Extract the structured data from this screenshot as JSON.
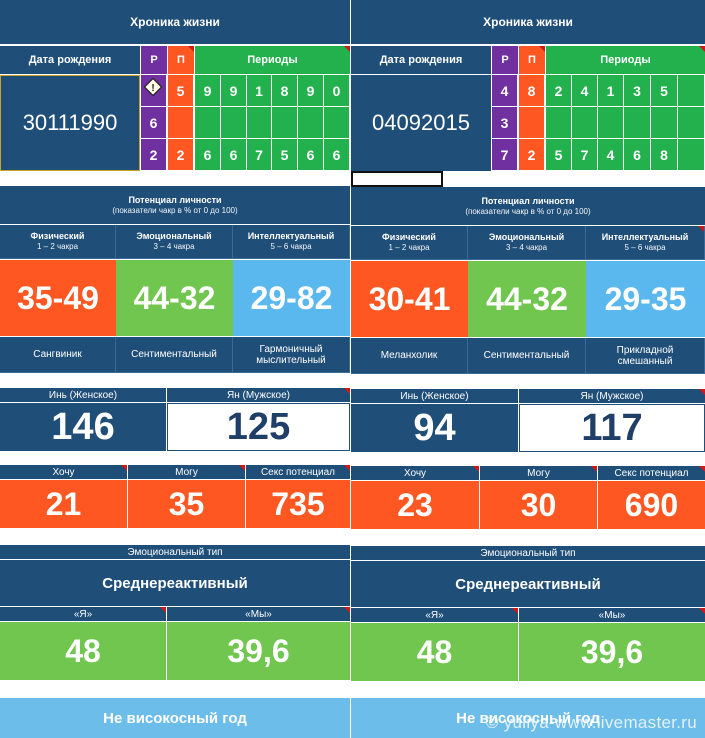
{
  "panels": [
    {
      "title": "Хроника жизни",
      "birth_label": "Дата рождения",
      "birth_date": "30111990",
      "p_label": "Р",
      "p2_label": "П",
      "periods_label": "Периоды",
      "p_col": [
        "",
        "6",
        "2"
      ],
      "p2_col": [
        "5",
        "",
        "2"
      ],
      "periods": [
        [
          "9",
          "9",
          "1",
          "8",
          "9",
          "0"
        ],
        [
          "",
          "",
          "",
          "",
          "",
          ""
        ],
        [
          "6",
          "6",
          "7",
          "5",
          "6",
          "6"
        ]
      ],
      "potential_title": "Потенциал личности",
      "potential_sub": "(показатели чакр в % от 0 до 100)",
      "physical_label": "Физический",
      "physical_sub": "1 – 2 чакра",
      "physical_value": "35-49",
      "emotional_label": "Эмоциональный",
      "emotional_sub": "3 – 4 чакра",
      "emotional_value": "44-32",
      "intellect_label": "Интеллектуальный",
      "intellect_sub": "5 – 6 чакра",
      "intellect_value": "29-82",
      "temper1": "Сангвиник",
      "temper2": "Сентиментальный",
      "temper3": "Гармоничный мыслительный",
      "yin_label": "Инь (Женское)",
      "yin_value": "146",
      "yang_label": "Ян (Мужское)",
      "yang_value": "125",
      "want_label": "Хочу",
      "want_value": "21",
      "can_label": "Могу",
      "can_value": "35",
      "sex_label": "Секс потенциал",
      "sex_value": "735",
      "emo_type_label": "Эмоциональный тип",
      "emo_type_value": "Среднереактивный",
      "ya_label": "«Я»",
      "ya_value": "48",
      "my_label": "«Мы»",
      "my_value": "39,6",
      "year_text": "Не високосный год"
    },
    {
      "title": "Хроника жизни",
      "birth_label": "Дата рождения",
      "birth_date": "04092015",
      "p_label": "Р",
      "p2_label": "П",
      "periods_label": "Периоды",
      "p_col": [
        "4",
        "3",
        "7"
      ],
      "p2_col": [
        "8",
        "",
        "2"
      ],
      "periods": [
        [
          "2",
          "4",
          "1",
          "3",
          "5",
          ""
        ],
        [
          "",
          "",
          "",
          "",
          "",
          ""
        ],
        [
          "5",
          "7",
          "4",
          "6",
          "8",
          ""
        ]
      ],
      "potential_title": "Потенциал личности",
      "potential_sub": "(показатели чакр в % от 0 до 100)",
      "physical_label": "Физический",
      "physical_sub": "1 – 2 чакра",
      "physical_value": "30-41",
      "emotional_label": "Эмоциональный",
      "emotional_sub": "3 – 4 чакра",
      "emotional_value": "44-32",
      "intellect_label": "Интеллектуальный",
      "intellect_sub": "5 – 6 чакра",
      "intellect_value": "29-35",
      "temper1": "Меланхолик",
      "temper2": "Сентиментальный",
      "temper3": "Прикладной смешанный",
      "yin_label": "Инь (Женское)",
      "yin_value": "94",
      "yang_label": "Ян (Мужское)",
      "yang_value": "117",
      "want_label": "Хочу",
      "want_value": "23",
      "can_label": "Могу",
      "can_value": "30",
      "sex_label": "Секс потенциал",
      "sex_value": "690",
      "emo_type_label": "Эмоциональный тип",
      "emo_type_value": "Среднереактивный",
      "ya_label": "«Я»",
      "ya_value": "48",
      "my_label": "«Мы»",
      "my_value": "39,6",
      "year_text": "Не високосный год"
    }
  ],
  "watermark": "© yuliya-www.livemaster.ru",
  "icons": {
    "warning": "warning-icon"
  }
}
